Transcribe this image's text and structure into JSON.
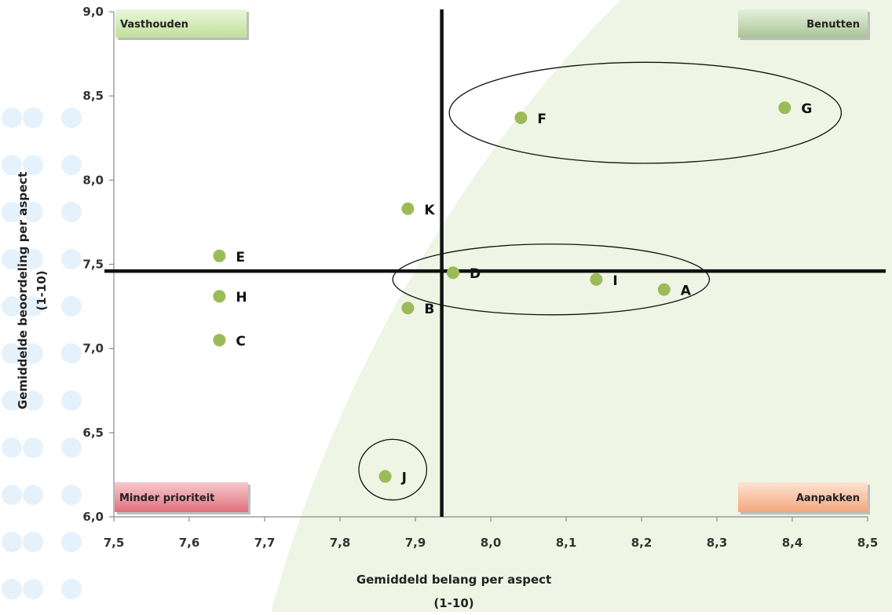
{
  "chart_data": {
    "type": "scatter",
    "xlabel": "Gemiddeld belang per aspect",
    "xlabel_unit": "(1-10)",
    "ylabel": "Gemiddelde beoordeling per aspect",
    "ylabel_unit": "(1-10)",
    "xlim": [
      7.5,
      8.5
    ],
    "ylim": [
      6.0,
      9.0
    ],
    "x_ticks": [
      "7,5",
      "7,6",
      "7,7",
      "7,8",
      "7,9",
      "8,0",
      "8,1",
      "8,2",
      "8,3",
      "8,4",
      "8,5"
    ],
    "y_ticks": [
      "6,0",
      "6,5",
      "7,0",
      "7,5",
      "8,0",
      "8,5",
      "9,0"
    ],
    "x_tick_values": [
      7.5,
      7.6,
      7.7,
      7.8,
      7.9,
      8.0,
      8.1,
      8.2,
      8.3,
      8.4,
      8.5
    ],
    "y_tick_values": [
      6.0,
      6.5,
      7.0,
      7.5,
      8.0,
      8.5,
      9.0
    ],
    "grid": false,
    "point_color": "#9bbb59",
    "points": [
      {
        "label": "A",
        "x": 8.23,
        "y": 7.35
      },
      {
        "label": "B",
        "x": 7.89,
        "y": 7.24
      },
      {
        "label": "C",
        "x": 7.64,
        "y": 7.05
      },
      {
        "label": "D",
        "x": 7.95,
        "y": 7.45
      },
      {
        "label": "E",
        "x": 7.64,
        "y": 7.55
      },
      {
        "label": "F",
        "x": 8.04,
        "y": 8.37
      },
      {
        "label": "G",
        "x": 8.39,
        "y": 8.43
      },
      {
        "label": "H",
        "x": 7.64,
        "y": 7.31
      },
      {
        "label": "I",
        "x": 8.14,
        "y": 7.41
      },
      {
        "label": "J",
        "x": 7.86,
        "y": 6.24
      },
      {
        "label": "K",
        "x": 7.89,
        "y": 7.83
      }
    ],
    "reference_lines": {
      "x": 7.935,
      "y": 7.46
    },
    "highlight_ellipses": [
      {
        "cx": 8.205,
        "cy": 8.4,
        "rx": 0.26,
        "ry": 0.3
      },
      {
        "cx": 8.08,
        "cy": 7.41,
        "rx": 0.21,
        "ry": 0.21
      },
      {
        "cx": 7.87,
        "cy": 6.28,
        "rx": 0.045,
        "ry": 0.18
      }
    ],
    "quadrants": [
      {
        "label": "Vasthouden",
        "position": "top-left",
        "color": "#c8e6a8"
      },
      {
        "label": "Benutten",
        "position": "top-right",
        "color": "#b8cfa8"
      },
      {
        "label": "Minder prioriteit",
        "position": "bottom-left",
        "color": "#e8828c"
      },
      {
        "label": "Aanpakken",
        "position": "bottom-right",
        "color": "#f5b894"
      }
    ]
  }
}
